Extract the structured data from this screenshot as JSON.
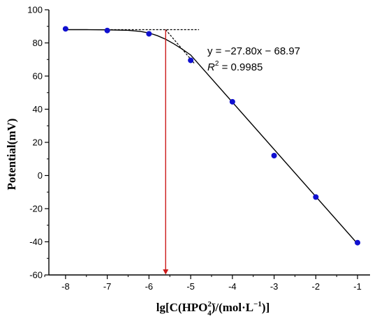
{
  "chart_data": {
    "type": "scatter",
    "title": "",
    "ylabel": "Potential(mV)",
    "xlabel": {
      "prefix": "lg[C(HPO",
      "sub": "4",
      "sup": "2−",
      "middle": ")/(mol·L",
      "exp": "−1",
      "suffix": ")]"
    },
    "xlim": [
      -8.4,
      -0.7
    ],
    "ylim": [
      -60,
      100
    ],
    "xticks": [
      -8,
      -7,
      -6,
      -5,
      -4,
      -3,
      -2,
      -1
    ],
    "xtick_labels": [
      "-8",
      "-7",
      "-6",
      "-5",
      "-4",
      "-3",
      "-2",
      "-1"
    ],
    "yticks": [
      -60,
      -40,
      -20,
      0,
      20,
      40,
      60,
      80,
      100
    ],
    "ytick_labels": [
      "-60",
      "-40",
      "-20",
      "0",
      "20",
      "40",
      "60",
      "80",
      "100"
    ],
    "grid": false,
    "x": [
      -8,
      -7,
      -6,
      -5,
      -4,
      -3,
      -2,
      -1
    ],
    "y": [
      88.5,
      87.5,
      85.5,
      69.5,
      44.5,
      12,
      -13,
      -40.5
    ],
    "fit": {
      "slope": -27.8,
      "intercept": -68.97
    },
    "plateau_y": 88,
    "detection_limit_x": -5.6,
    "equation": "y = −27.80x − 68.97",
    "r2_symbol": "R",
    "r2_exp": "2",
    "r2_value": " = 0.9985",
    "colors": {
      "points": "#1010d0",
      "fit": "#000000",
      "arrow": "#cc1a1a"
    }
  }
}
